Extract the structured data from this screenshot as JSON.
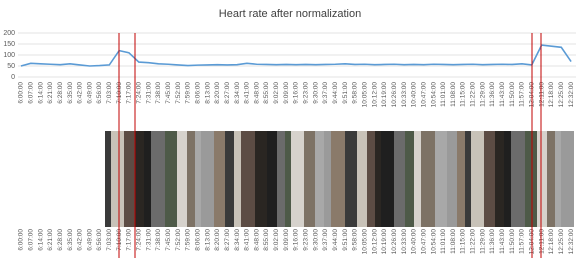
{
  "chart_data": {
    "type": "line",
    "title": "Heart rate after normalization",
    "categories": [
      "6:00:00",
      "6:07:00",
      "6:14:00",
      "6:21:00",
      "6:28:00",
      "6:35:00",
      "6:42:00",
      "6:49:00",
      "6:56:00",
      "7:03:00",
      "7:10:00",
      "7:17:00",
      "7:24:00",
      "7:31:00",
      "7:38:00",
      "7:45:00",
      "7:52:00",
      "7:59:00",
      "8:06:00",
      "8:13:00",
      "8:20:00",
      "8:27:00",
      "8:34:00",
      "8:41:00",
      "8:48:00",
      "8:55:00",
      "9:02:00",
      "9:09:00",
      "9:16:00",
      "9:23:00",
      "9:30:00",
      "9:37:00",
      "9:44:00",
      "9:51:00",
      "9:58:00",
      "10:05:00",
      "10:12:00",
      "10:19:00",
      "10:26:00",
      "10:33:00",
      "10:40:00",
      "10:47:00",
      "10:54:00",
      "11:01:00",
      "11:08:00",
      "11:15:00",
      "11:22:00",
      "11:29:00",
      "11:36:00",
      "11:43:00",
      "11:50:00",
      "11:57:00",
      "12:04:00",
      "12:11:00",
      "12:18:00",
      "12:25:00",
      "12:32:00"
    ],
    "series": [
      {
        "color": "#5b9bd5",
        "values": [
          50,
          62,
          60,
          58,
          56,
          60,
          55,
          50,
          52,
          55,
          120,
          110,
          68,
          65,
          60,
          58,
          55,
          52,
          54,
          55,
          56,
          55,
          56,
          62,
          58,
          57,
          56,
          57,
          56,
          57,
          56,
          57,
          58,
          60,
          57,
          58,
          56,
          57,
          58,
          56,
          57,
          56,
          58,
          57,
          56,
          57,
          58,
          56,
          57,
          58,
          57,
          60,
          55,
          145,
          140,
          135,
          70
        ]
      }
    ],
    "ylim": [
      0,
      200
    ],
    "yticks": [
      0,
      50,
      100,
      150,
      200
    ],
    "grid": true
  }
}
